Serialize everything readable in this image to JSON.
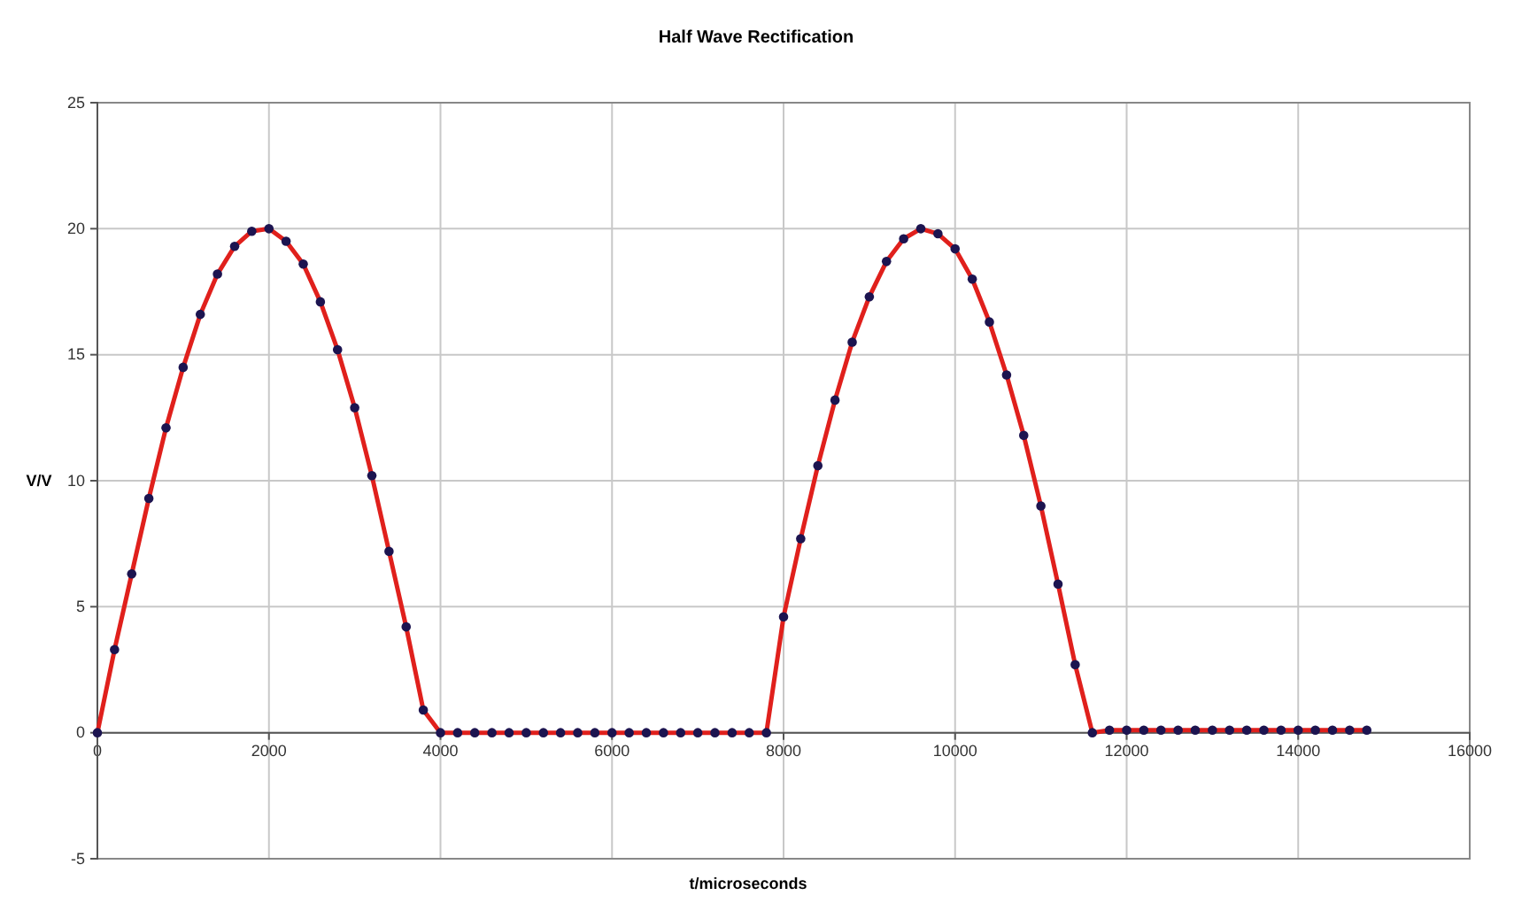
{
  "chart_data": {
    "type": "line",
    "title": "Half Wave Rectification",
    "xlabel": "t/microseconds",
    "ylabel": "V/V",
    "x": [
      0,
      200,
      400,
      600,
      800,
      1000,
      1200,
      1400,
      1600,
      1800,
      2000,
      2200,
      2400,
      2600,
      2800,
      3000,
      3200,
      3400,
      3600,
      3800,
      4000,
      4200,
      4400,
      4600,
      4800,
      5000,
      5200,
      5400,
      5600,
      5800,
      6000,
      6200,
      6400,
      6600,
      6800,
      7000,
      7200,
      7400,
      7600,
      7800,
      8000,
      8200,
      8400,
      8600,
      8800,
      9000,
      9200,
      9400,
      9600,
      9800,
      10000,
      10200,
      10400,
      10600,
      10800,
      11000,
      11200,
      11400,
      11600,
      11800,
      12000,
      12200,
      12400,
      12600,
      12800,
      13000,
      13200,
      13400,
      13600,
      13800,
      14000,
      14200,
      14400,
      14600,
      14800
    ],
    "series": [
      {
        "color": "#e0201c",
        "values": [
          0,
          3.3,
          6.3,
          9.3,
          12.1,
          14.5,
          16.6,
          18.2,
          19.3,
          19.9,
          20,
          19.5,
          18.6,
          17.1,
          15.2,
          12.9,
          10.2,
          7.2,
          4.2,
          0.9,
          0,
          0,
          0,
          0,
          0,
          0,
          0,
          0,
          0,
          0,
          0,
          0,
          0,
          0,
          0,
          0,
          0,
          0,
          0,
          0,
          4.6,
          7.7,
          10.6,
          13.2,
          15.5,
          17.3,
          18.7,
          19.6,
          20,
          19.8,
          19.2,
          18,
          16.3,
          14.2,
          11.8,
          9,
          5.9,
          2.7,
          0,
          0.1,
          0.1,
          0.1,
          0.1,
          0.1,
          0.1,
          0.1,
          0.1,
          0.1,
          0.1,
          0.1,
          0.1,
          0.1,
          0.1,
          0.1,
          0.1
        ]
      }
    ],
    "xlim": [
      0,
      16000
    ],
    "xticks": [
      0,
      2000,
      4000,
      6000,
      8000,
      10000,
      12000,
      14000,
      16000
    ],
    "ylim": [
      -5,
      25
    ],
    "yticks": [
      -5,
      0,
      5,
      10,
      15,
      20,
      25
    ],
    "grid": true,
    "marker": "circle",
    "line_style": "solid"
  }
}
